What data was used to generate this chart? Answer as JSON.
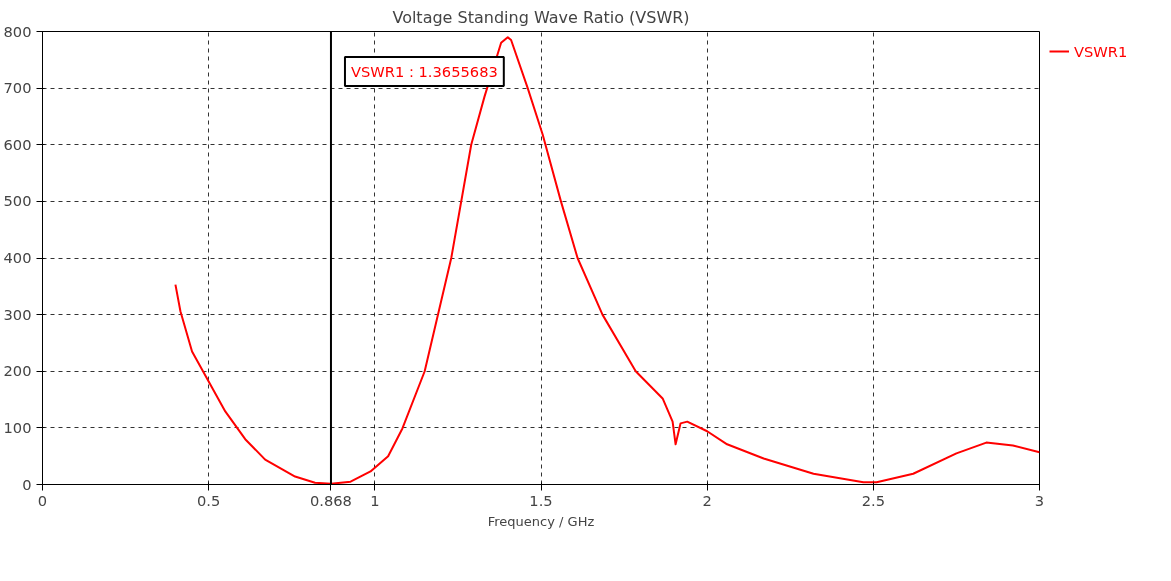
{
  "chart_data": {
    "type": "line",
    "title": "Voltage Standing Wave Ratio (VSWR)",
    "xlabel": "Frequency / GHz",
    "x": [
      0.4,
      0.415,
      0.45,
      0.5,
      0.55,
      0.61,
      0.67,
      0.76,
      0.82,
      0.868,
      0.927,
      0.987,
      1.04,
      1.083,
      1.15,
      1.23,
      1.29,
      1.33,
      1.38,
      1.4,
      1.41,
      1.46,
      1.505,
      1.56,
      1.61,
      1.685,
      1.785,
      1.866,
      1.896,
      1.905,
      1.92,
      1.94,
      2.0,
      2.06,
      2.17,
      2.32,
      2.47,
      2.51,
      2.62,
      2.75,
      2.84,
      2.92,
      3.0
    ],
    "series": [
      {
        "name": "VSWR1",
        "color": "#ff0000",
        "values": [
          353,
          306,
          235,
          182,
          129,
          80,
          44,
          14,
          3,
          1.3655683,
          5,
          23,
          50,
          99,
          200,
          400,
          600,
          685,
          780,
          790,
          785,
          700,
          618,
          500,
          400,
          300,
          200,
          152,
          111,
          71,
          108,
          111,
          94,
          71,
          46,
          19,
          4,
          4,
          19,
          55,
          74,
          69,
          57
        ]
      }
    ],
    "xlim": [
      0,
      3
    ],
    "ylim": [
      0,
      800
    ],
    "xticks": [
      0,
      0.5,
      1,
      1.5,
      2,
      2.5,
      3
    ],
    "yticks": [
      0,
      100,
      200,
      300,
      400,
      500,
      600,
      700,
      800
    ],
    "ref_lines": [
      {
        "axis": "x",
        "value": 0.868,
        "label": "0.868",
        "color": "#000000"
      }
    ],
    "annotations": [
      "VSWR1 : 1.3655683"
    ],
    "grid": true,
    "legend": "top right",
    "marker": "none",
    "line_style": "solid"
  }
}
